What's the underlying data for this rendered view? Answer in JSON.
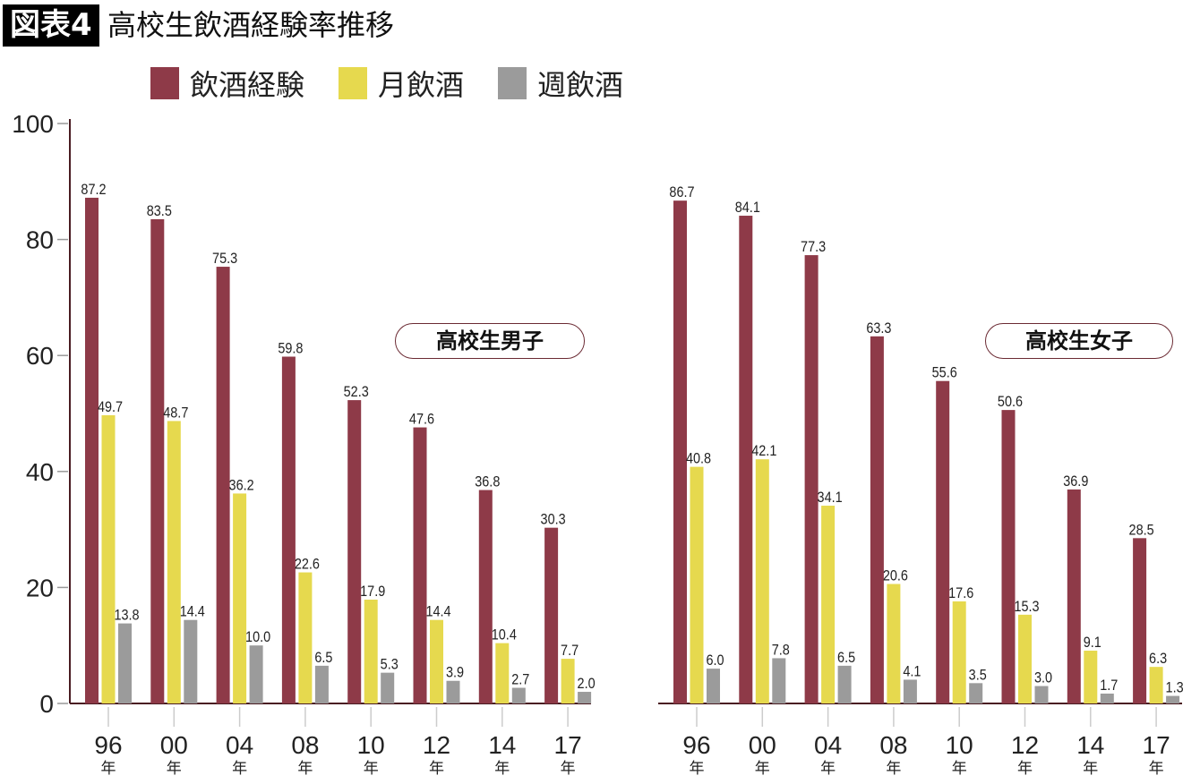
{
  "title": {
    "badge": "図表4",
    "text": "高校生飲酒経験率推移"
  },
  "chart_data": {
    "type": "bar",
    "title": "図表4 高校生飲酒経験率推移",
    "ylim": [
      0,
      100
    ],
    "yticks": [
      0,
      20,
      40,
      60,
      80,
      100
    ],
    "grid": false,
    "legend_placement": "top",
    "year_suffix": "年",
    "panels": [
      {
        "label": "高校生男子",
        "categories": [
          "96",
          "00",
          "04",
          "08",
          "10",
          "12",
          "14",
          "17"
        ],
        "series": [
          {
            "name": "飲酒経験",
            "color": "#8e3a48",
            "values": [
              87.2,
              83.5,
              75.3,
              59.8,
              52.3,
              47.6,
              36.8,
              30.3
            ]
          },
          {
            "name": "月飲酒",
            "color": "#e6d94e",
            "values": [
              49.7,
              48.7,
              36.2,
              22.6,
              17.9,
              14.4,
              10.4,
              7.7
            ]
          },
          {
            "name": "週飲酒",
            "color": "#9b9b9b",
            "values": [
              13.8,
              14.4,
              10.0,
              6.5,
              5.3,
              3.9,
              2.7,
              2.0
            ]
          }
        ]
      },
      {
        "label": "高校生女子",
        "categories": [
          "96",
          "00",
          "04",
          "08",
          "10",
          "12",
          "14",
          "17"
        ],
        "series": [
          {
            "name": "飲酒経験",
            "color": "#8e3a48",
            "values": [
              86.7,
              84.1,
              77.3,
              63.3,
              55.6,
              50.6,
              36.9,
              28.5
            ]
          },
          {
            "name": "月飲酒",
            "color": "#e6d94e",
            "values": [
              40.8,
              42.1,
              34.1,
              20.6,
              17.6,
              15.3,
              9.1,
              6.3
            ]
          },
          {
            "name": "週飲酒",
            "color": "#9b9b9b",
            "values": [
              6.0,
              7.8,
              6.5,
              4.1,
              3.5,
              3.0,
              1.7,
              1.3
            ]
          }
        ]
      }
    ],
    "legend": [
      "飲酒経験",
      "月飲酒",
      "週飲酒"
    ]
  }
}
